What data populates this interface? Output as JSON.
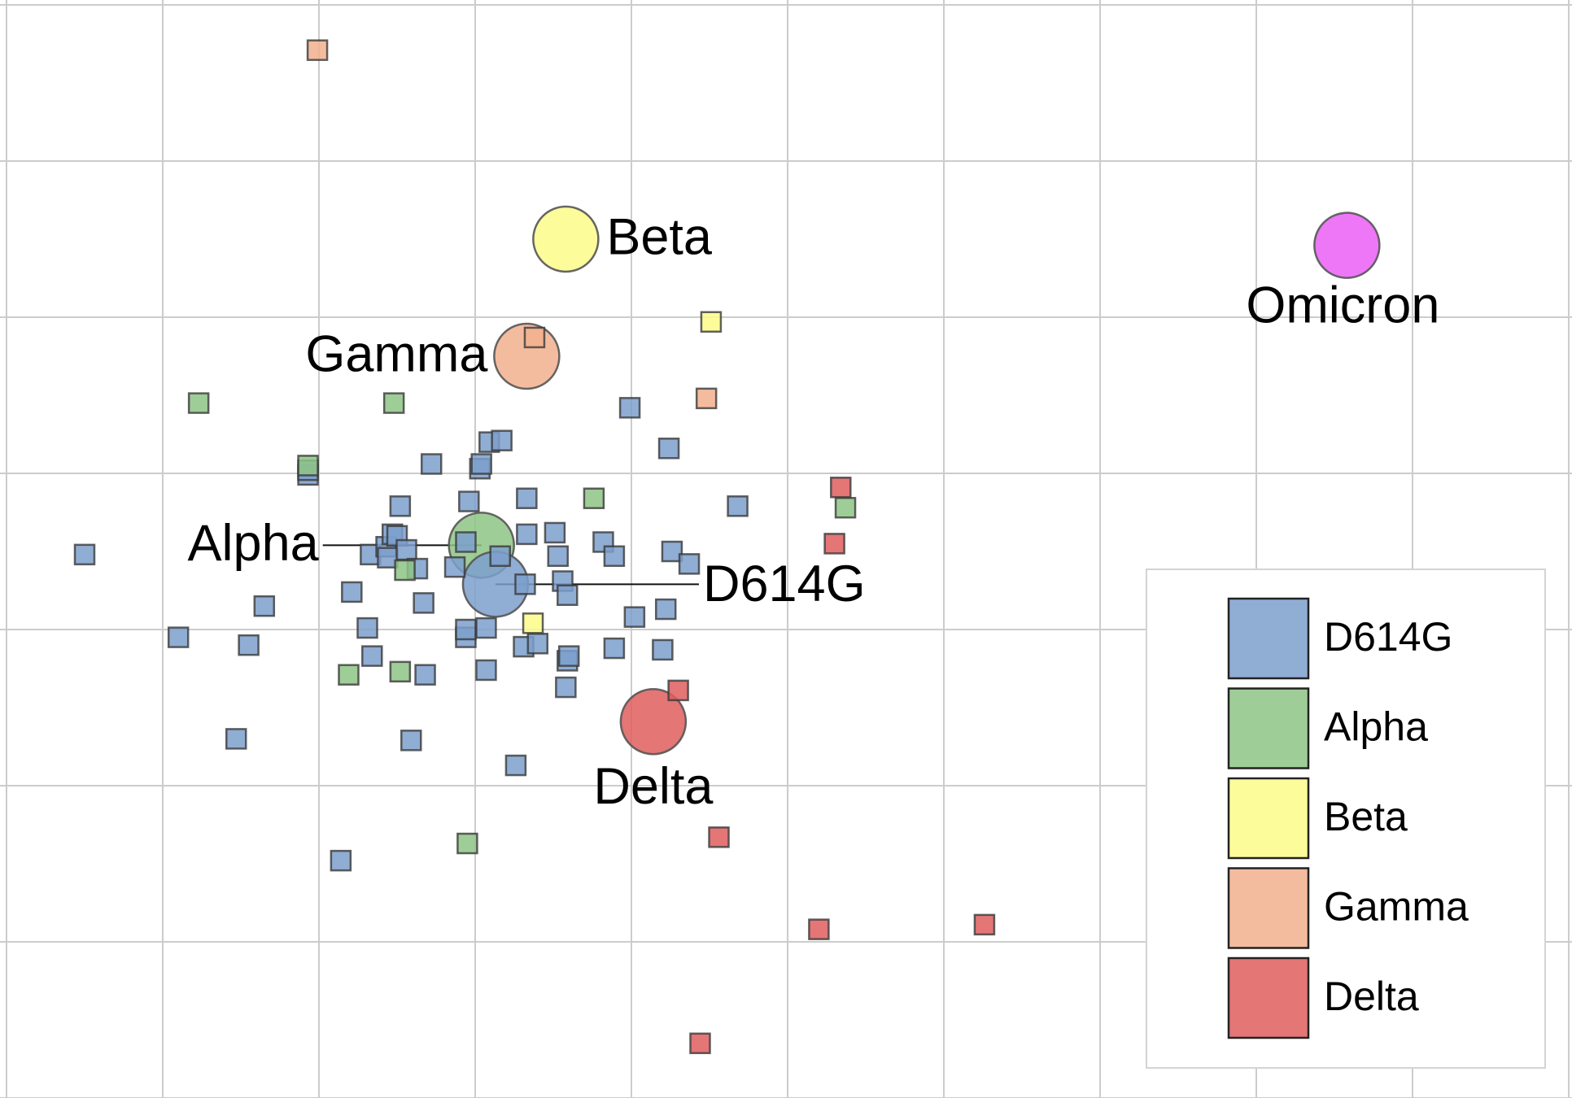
{
  "colors": {
    "D614G": "#7c9fcd",
    "Alpha": "#8ec485",
    "Beta": "#fcfc8a",
    "Gamma": "#f2b08d",
    "Delta": "#df5e5e",
    "Omicron": "#ea5ff5"
  },
  "chart_data": {
    "type": "scatter",
    "title": "",
    "xlabel": "",
    "ylabel": "",
    "grid": true,
    "xlim": [
      0,
      10.06
    ],
    "ylim": [
      0,
      7.04
    ],
    "legend_position": "bottom-right",
    "legend": [
      {
        "label": "D614G",
        "variant": "D614G"
      },
      {
        "label": "Alpha",
        "variant": "Alpha"
      },
      {
        "label": "Beta",
        "variant": "Beta"
      },
      {
        "label": "Gamma",
        "variant": "Gamma"
      },
      {
        "label": "Delta",
        "variant": "Delta"
      }
    ],
    "antigens": [
      {
        "name": "Beta",
        "variant": "Beta",
        "x": 3.58,
        "y": 5.5
      },
      {
        "name": "Omicron",
        "variant": "Omicron",
        "x": 8.58,
        "y": 5.46
      },
      {
        "name": "Gamma",
        "variant": "Gamma",
        "x": 3.33,
        "y": 4.75
      },
      {
        "name": "Alpha",
        "variant": "Alpha",
        "x": 3.04,
        "y": 3.54
      },
      {
        "name": "D614G",
        "variant": "D614G",
        "x": 3.13,
        "y": 3.29
      },
      {
        "name": "Delta",
        "variant": "Delta",
        "x": 4.14,
        "y": 2.41
      }
    ],
    "sera": [
      {
        "variant": "D614G",
        "points": [
          [
            0.5,
            3.48
          ],
          [
            1.1,
            2.95
          ],
          [
            1.55,
            2.9
          ],
          [
            1.65,
            3.15
          ],
          [
            1.47,
            2.3
          ],
          [
            1.93,
            3.99
          ],
          [
            1.93,
            4.02
          ],
          [
            2.14,
            1.52
          ],
          [
            2.21,
            3.24
          ],
          [
            2.34,
            2.83
          ],
          [
            2.31,
            3.01
          ],
          [
            2.33,
            3.48
          ],
          [
            2.43,
            3.53
          ],
          [
            2.44,
            3.46
          ],
          [
            2.47,
            3.61
          ],
          [
            2.52,
            3.79
          ],
          [
            2.5,
            3.6
          ],
          [
            2.56,
            3.51
          ],
          [
            2.59,
            2.29
          ],
          [
            2.63,
            3.39
          ],
          [
            2.67,
            3.17
          ],
          [
            2.68,
            2.71
          ],
          [
            2.72,
            4.06
          ],
          [
            2.87,
            3.4
          ],
          [
            2.94,
            3.56
          ],
          [
            2.94,
            2.95
          ],
          [
            2.94,
            3.0
          ],
          [
            2.96,
            3.82
          ],
          [
            3.03,
            4.03
          ],
          [
            3.04,
            4.06
          ],
          [
            3.09,
            4.2
          ],
          [
            3.17,
            4.21
          ],
          [
            3.07,
            2.74
          ],
          [
            3.07,
            3.01
          ],
          [
            3.16,
            3.47
          ],
          [
            3.33,
            3.61
          ],
          [
            3.32,
            3.29
          ],
          [
            3.31,
            2.89
          ],
          [
            3.26,
            2.13
          ],
          [
            3.4,
            2.91
          ],
          [
            3.33,
            3.84
          ],
          [
            3.51,
            3.62
          ],
          [
            3.53,
            3.47
          ],
          [
            3.56,
            3.31
          ],
          [
            3.59,
            3.22
          ],
          [
            3.59,
            2.8
          ],
          [
            3.6,
            2.83
          ],
          [
            3.58,
            2.63
          ],
          [
            3.82,
            3.56
          ],
          [
            3.89,
            3.47
          ],
          [
            3.89,
            2.88
          ],
          [
            4.02,
            3.08
          ],
          [
            3.99,
            4.42
          ],
          [
            4.22,
            3.13
          ],
          [
            4.2,
            2.87
          ],
          [
            4.24,
            4.16
          ],
          [
            4.26,
            3.5
          ],
          [
            4.37,
            3.42
          ],
          [
            4.68,
            3.79
          ]
        ]
      },
      {
        "variant": "Alpha",
        "points": [
          [
            1.23,
            4.45
          ],
          [
            2.48,
            4.45
          ],
          [
            1.93,
            4.05
          ],
          [
            2.19,
            2.71
          ],
          [
            2.52,
            2.73
          ],
          [
            2.55,
            3.38
          ],
          [
            2.95,
            1.63
          ],
          [
            3.76,
            3.84
          ],
          [
            5.37,
            3.78
          ]
        ]
      },
      {
        "variant": "Beta",
        "points": [
          [
            4.51,
            4.97
          ],
          [
            3.37,
            3.04
          ]
        ]
      },
      {
        "variant": "Gamma",
        "points": [
          [
            1.99,
            6.71
          ],
          [
            3.38,
            4.87
          ],
          [
            4.48,
            4.48
          ]
        ]
      },
      {
        "variant": "Delta",
        "points": [
          [
            5.34,
            3.91
          ],
          [
            5.3,
            3.55
          ],
          [
            4.3,
            2.61
          ],
          [
            4.56,
            1.67
          ],
          [
            5.2,
            1.08
          ],
          [
            6.26,
            1.11
          ],
          [
            4.44,
            0.35
          ]
        ]
      }
    ]
  }
}
